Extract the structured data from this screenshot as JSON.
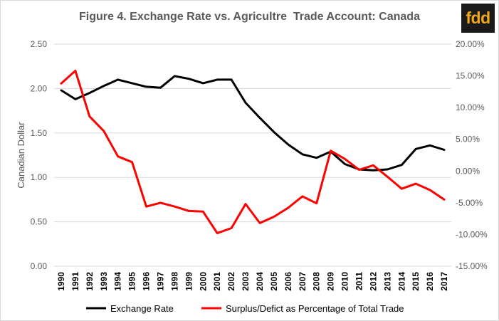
{
  "brand": {
    "logo_text": "fdd"
  },
  "chart_data": {
    "type": "line",
    "title": "Figure 4. Exchange Rate vs. Agricultre  Trade Account: Canada",
    "ylabel_left": "Canadian Dollar",
    "ylabel_right": "",
    "xlabel": "",
    "x": [
      1990,
      1991,
      1992,
      1993,
      1994,
      1995,
      1996,
      1997,
      1998,
      1999,
      2000,
      2001,
      2002,
      2003,
      2004,
      2005,
      2006,
      2007,
      2008,
      2009,
      2010,
      2011,
      2012,
      2013,
      2014,
      2015,
      2016,
      2017
    ],
    "left_axis": {
      "ylim": [
        0,
        2.5
      ],
      "ticks": [
        0,
        0.5,
        1.0,
        1.5,
        2.0,
        2.5
      ],
      "tick_labels": [
        "0.00",
        "0.50",
        "1.00",
        "1.50",
        "2.00",
        "2.50"
      ]
    },
    "right_axis": {
      "ylim": [
        -15,
        20
      ],
      "ticks": [
        -15,
        -10,
        -5,
        0,
        5,
        10,
        15,
        20
      ],
      "tick_labels": [
        "-15.00%",
        "-10.00%",
        "-5.00%",
        "0.00%",
        "5.00%",
        "10.00%",
        "15.00%",
        "20.00%"
      ]
    },
    "series": [
      {
        "name": "Exchange Rate",
        "axis": "left",
        "color": "#000000",
        "values": [
          1.98,
          1.88,
          1.95,
          2.03,
          2.1,
          2.06,
          2.02,
          2.01,
          2.14,
          2.11,
          2.06,
          2.1,
          2.1,
          1.84,
          1.67,
          1.51,
          1.37,
          1.26,
          1.22,
          1.29,
          1.15,
          1.09,
          1.08,
          1.09,
          1.14,
          1.32,
          1.36,
          1.31
        ]
      },
      {
        "name": "Surplus/Defict as Percentage of Total Trade",
        "axis": "right",
        "color": "#ff0000",
        "values": [
          13.8,
          15.8,
          8.6,
          6.3,
          2.3,
          1.4,
          -5.6,
          -5.0,
          -5.6,
          -6.3,
          -6.4,
          -9.8,
          -9.0,
          -5.2,
          -8.2,
          -7.2,
          -5.8,
          -4.0,
          -5.1,
          3.2,
          1.9,
          0.2,
          0.9,
          -0.9,
          -2.8,
          -2.0,
          -3.0,
          -4.5
        ]
      }
    ],
    "grid": true,
    "legend": "bottom"
  }
}
